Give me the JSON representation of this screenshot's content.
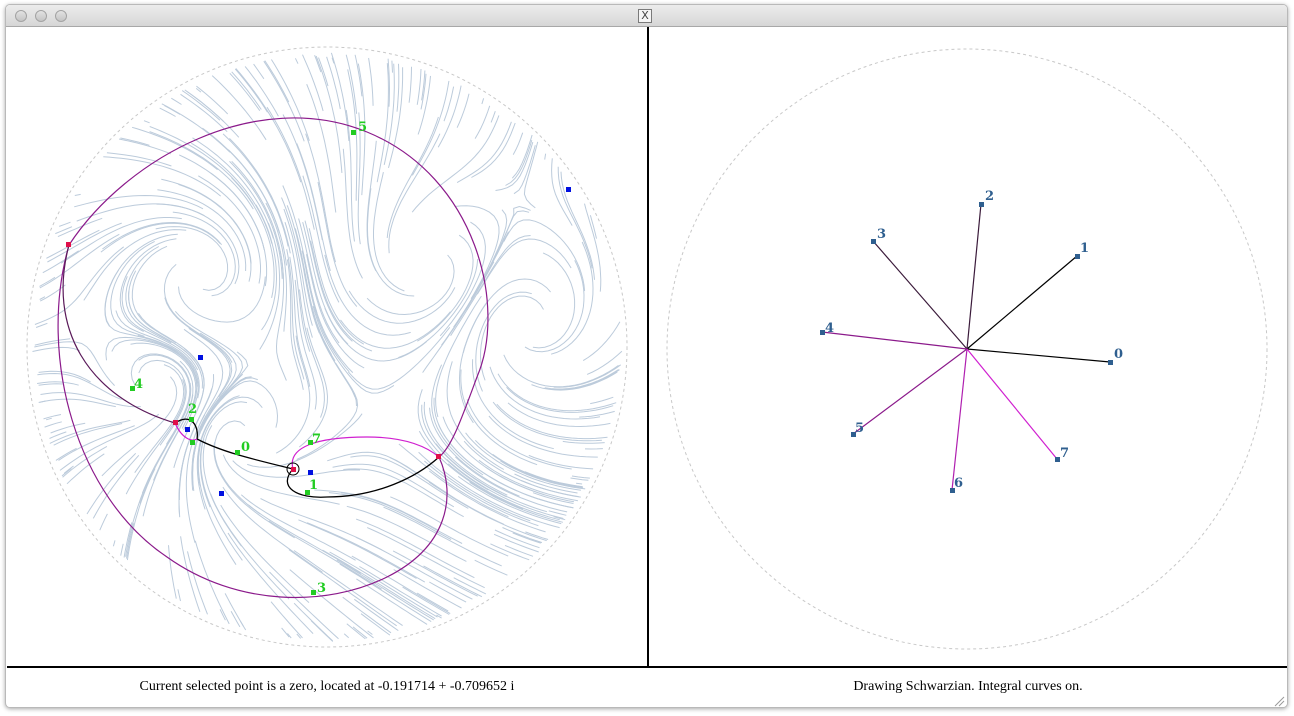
{
  "window": {
    "close_label": "X"
  },
  "left_plot": {
    "labels": [
      "0",
      "1",
      "2",
      "3",
      "4",
      "5",
      "7"
    ]
  },
  "right_plot": {
    "labels": [
      "0",
      "1",
      "2",
      "3",
      "4",
      "5",
      "6",
      "7"
    ]
  },
  "status": {
    "left": "Current selected point is a zero, located at -0.191714 + -0.709652 i",
    "right": "Drawing Schwarzian. Integral curves on."
  },
  "colors": {
    "flow": "#bccbdb",
    "curve_purple": "#8b1a8b",
    "curve_magenta": "#d020d0",
    "zero_red": "#e0104a",
    "pole_blue": "#0010e0",
    "label_green": "#22cc22",
    "label_steel": "#2f5f8f"
  }
}
